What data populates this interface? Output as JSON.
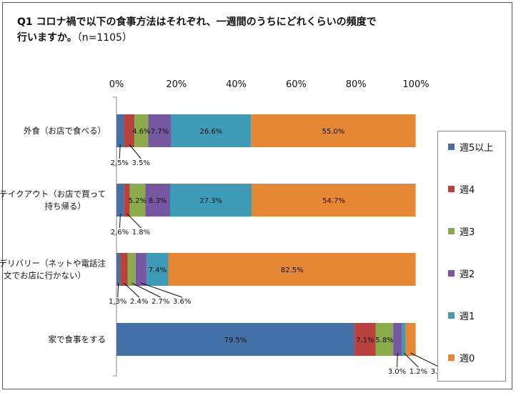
{
  "title": {
    "main": "Q1 コロナ禍で以下の食事方法はそれぞれ、一週間のうちにどれくらいの頻度で\n行いますか。",
    "n_label": "（n=1105）"
  },
  "colors": {
    "週5以上": "#4472a8",
    "週4": "#b9413e",
    "週3": "#8cab4a",
    "週2": "#7558a0",
    "週1": "#3e9bb5",
    "週0": "#e68735"
  },
  "chart_data": {
    "type": "bar",
    "orientation": "horizontal",
    "stacked": true,
    "percent": true,
    "xlim": [
      0,
      100
    ],
    "xticks": [
      "0%",
      "20%",
      "40%",
      "60%",
      "80%",
      "100%"
    ],
    "categories": [
      "外食（お店で食べる）",
      "テイクアウト（お店で買って\n持ち帰る）",
      "デリバリー（ネットや電話注\n文でお店に行かない）",
      "家で食事をする"
    ],
    "series": [
      {
        "name": "週5以上",
        "values": [
          2.5,
          2.6,
          1.3,
          79.5
        ],
        "labels": [
          "2.5%",
          "2.6%",
          "1.3%",
          "79.5%"
        ]
      },
      {
        "name": "週4",
        "values": [
          3.5,
          1.8,
          2.4,
          7.1
        ],
        "labels": [
          "3.5%",
          "1.8%",
          "2.4%",
          "7.1%"
        ]
      },
      {
        "name": "週3",
        "values": [
          4.6,
          5.2,
          2.7,
          5.8
        ],
        "labels": [
          "4.6%",
          "5.2%",
          "2.7%",
          "5.8%"
        ]
      },
      {
        "name": "週2",
        "values": [
          7.7,
          8.3,
          3.6,
          3.0
        ],
        "labels": [
          "7.7%",
          "8.3%",
          "3.6%",
          "3.0%"
        ]
      },
      {
        "name": "週1",
        "values": [
          26.6,
          27.3,
          7.4,
          1.2
        ],
        "labels": [
          "26.6%",
          "27.3%",
          "7.4%",
          "1.2%"
        ]
      },
      {
        "name": "週0",
        "values": [
          55.0,
          54.7,
          82.5,
          3.3
        ],
        "labels": [
          "55.0%",
          "54.7%",
          "82.5%",
          "3.3%"
        ]
      }
    ],
    "legend_position": "right"
  }
}
